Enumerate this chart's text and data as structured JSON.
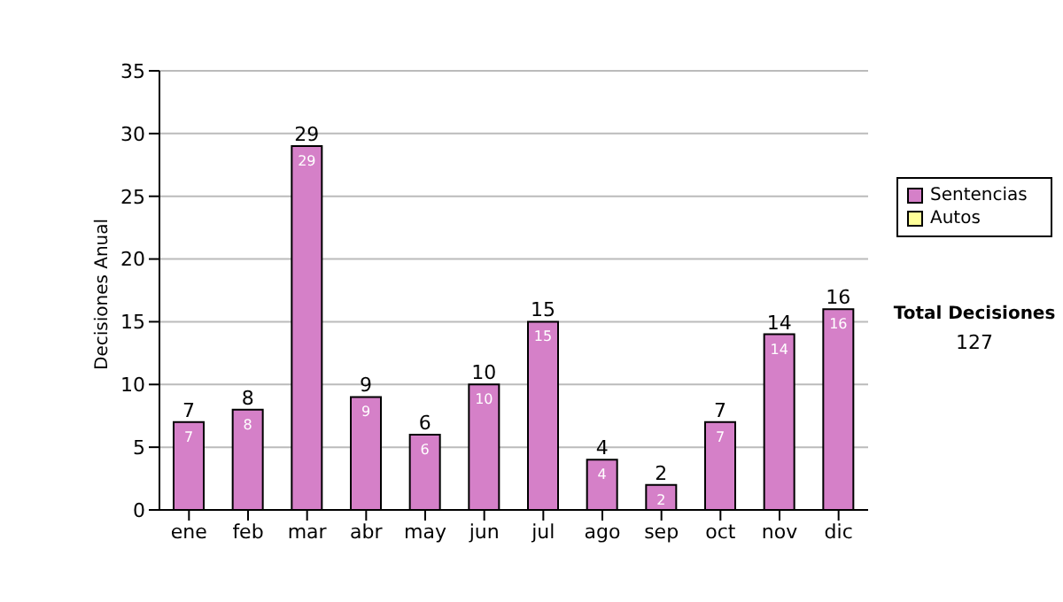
{
  "chart_data": {
    "type": "bar",
    "ylabel": "Decisiones Anual",
    "categories": [
      "ene",
      "feb",
      "mar",
      "abr",
      "may",
      "jun",
      "jul",
      "ago",
      "sep",
      "oct",
      "nov",
      "dic"
    ],
    "series": [
      {
        "name": "Sentencias",
        "color": "#d580c8",
        "values": [
          7,
          8,
          29,
          9,
          6,
          10,
          15,
          4,
          2,
          7,
          14,
          16
        ],
        "value_labels": [
          "7",
          "8",
          "29",
          "9",
          "6",
          "10",
          "15",
          "4",
          "2",
          "7",
          "14",
          "16"
        ]
      },
      {
        "name": "Autos",
        "color": "#ffff99",
        "values": [
          0,
          0,
          0,
          0,
          0,
          0,
          0,
          0,
          0,
          0,
          0,
          0
        ]
      }
    ],
    "stacked": true,
    "totals": [
      "7",
      "8",
      "29",
      "9",
      "6",
      "10",
      "15",
      "4",
      "2",
      "7",
      "14",
      "16"
    ],
    "ylim": [
      0,
      35
    ],
    "yticks": [
      0,
      5,
      10,
      15,
      20,
      25,
      30,
      35
    ],
    "grid": "y",
    "legend": "right",
    "annotations": [
      "Total Decisiones",
      "127"
    ]
  }
}
